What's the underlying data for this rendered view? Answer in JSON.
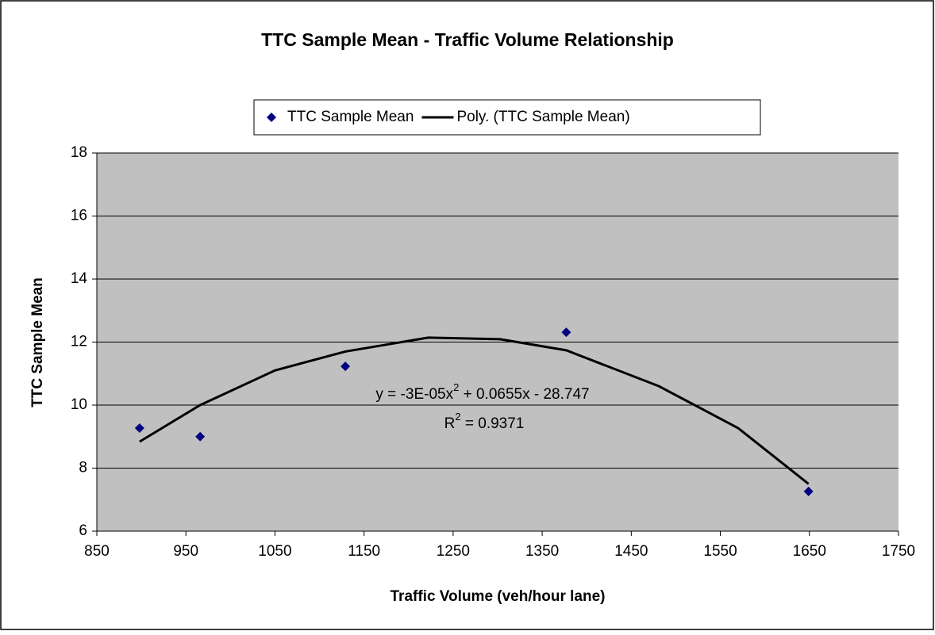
{
  "chart_data": {
    "type": "scatter",
    "title": "TTC Sample Mean - Traffic Volume Relationship",
    "x_label": "Traffic Volume (veh/hour lane)",
    "y_label": "TTC Sample Mean",
    "xlim": [
      850,
      1750
    ],
    "xticks": [
      850,
      950,
      1050,
      1150,
      1250,
      1350,
      1450,
      1550,
      1650,
      1750
    ],
    "ylim": [
      6,
      18
    ],
    "yticks": [
      6,
      8,
      10,
      12,
      14,
      16,
      18
    ],
    "grid": true,
    "legend": "top",
    "series": [
      {
        "name": "TTC Sample Mean",
        "mode": "markers",
        "color": "#000080",
        "x": [
          898,
          966,
          1129,
          1377,
          1649
        ],
        "values": [
          9.27,
          9.0,
          11.23,
          12.31,
          7.26
        ]
      },
      {
        "name": "Poly. (TTC Sample Mean)",
        "mode": "line",
        "color": "#000000",
        "x": [
          898,
          966,
          1050,
          1129,
          1222,
          1303,
          1377,
          1481,
          1570,
          1649
        ],
        "values": [
          8.84,
          10.0,
          11.1,
          11.7,
          12.14,
          12.09,
          11.74,
          10.6,
          9.27,
          7.5
        ]
      }
    ],
    "equation": [
      "y = -3E-05x",
      "2",
      " + 0.0655x - 28.747"
    ],
    "r_squared": [
      "R",
      "2",
      " = 0.9371"
    ]
  }
}
